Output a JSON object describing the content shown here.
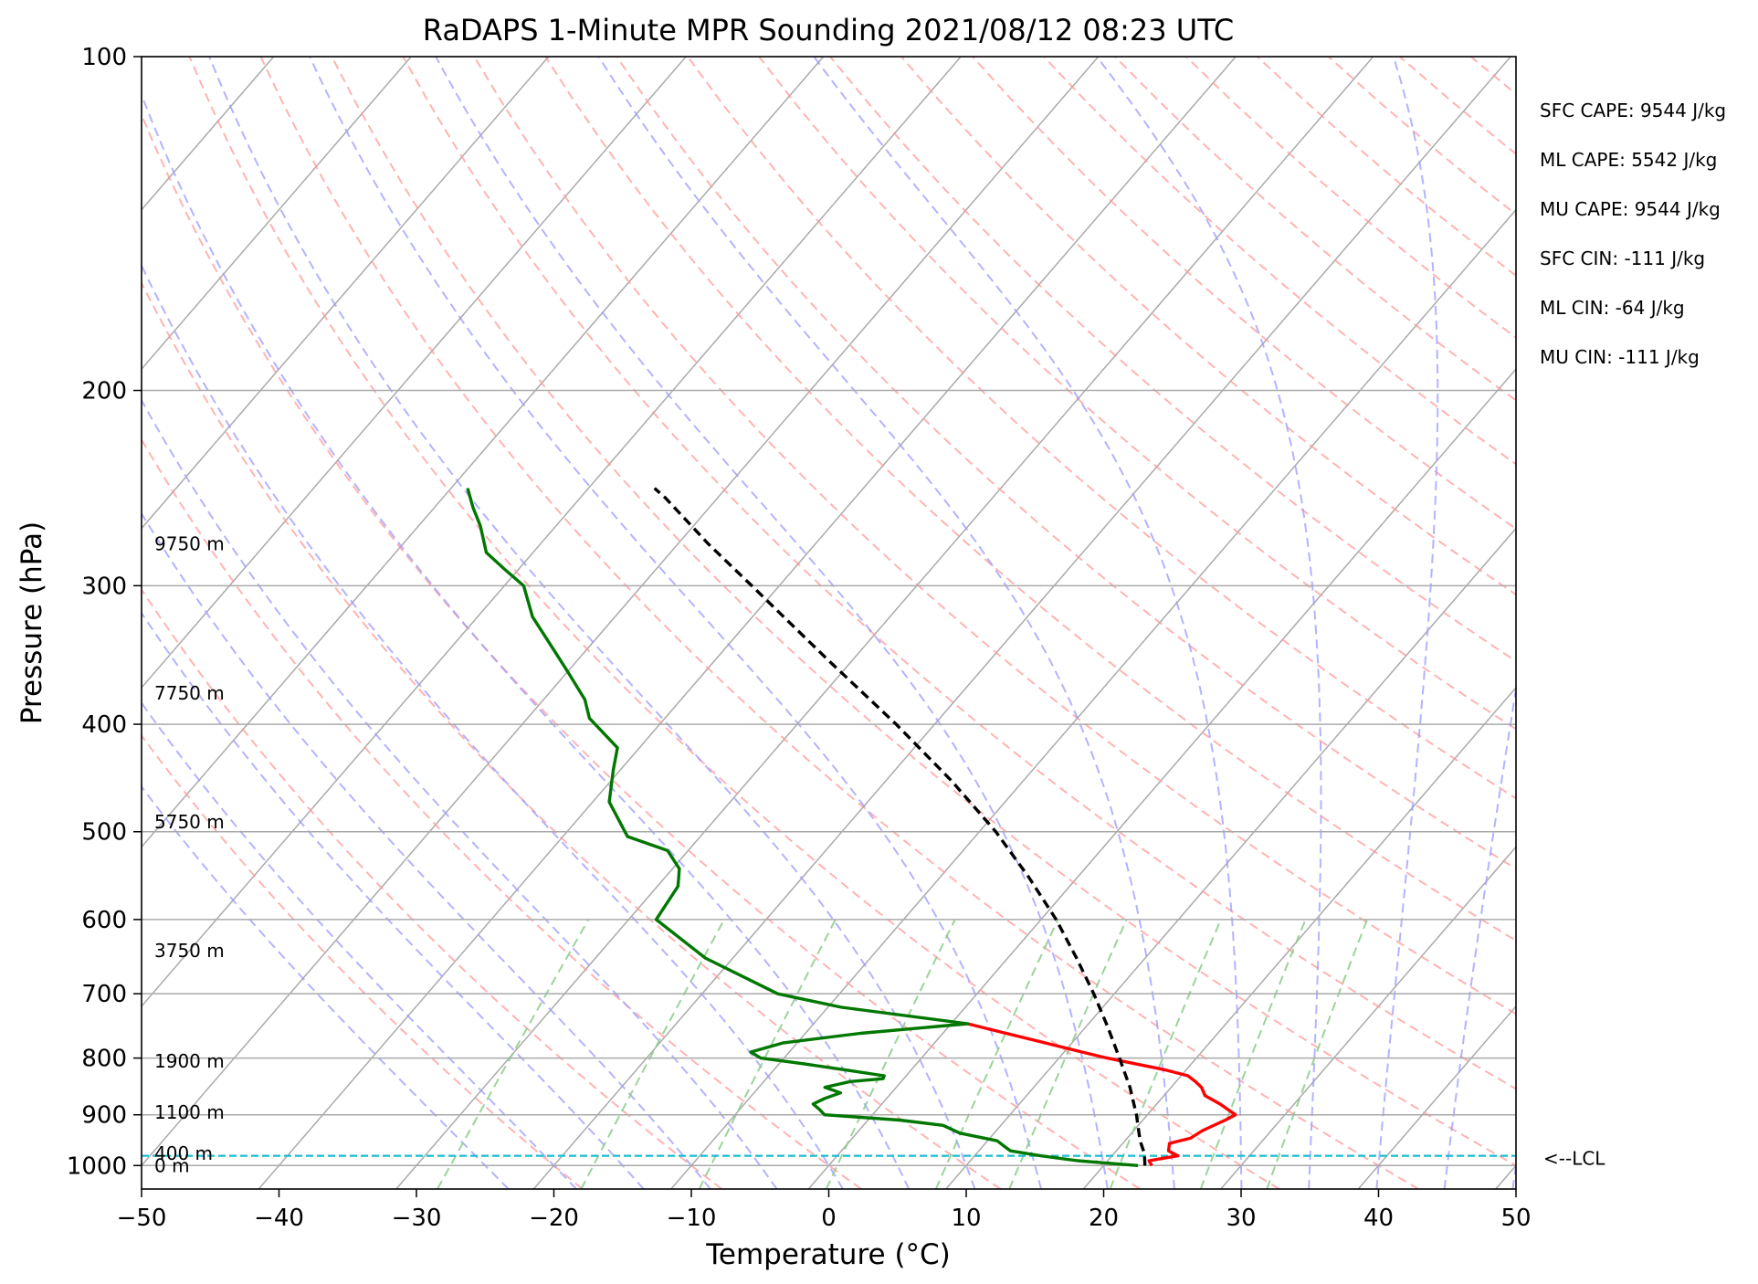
{
  "chart_data": {
    "type": "line",
    "subtype": "skew-T log-p sounding",
    "title": "RaDAPS 1-Minute MPR Sounding 2021/08/12 08:23 UTC",
    "xlabel": "Temperature (°C)",
    "ylabel": "Pressure (hPa)",
    "xlim": [
      -50,
      50
    ],
    "ylim_pressure": [
      1050,
      100
    ],
    "y_scale": "log",
    "x_ticks": [
      -50,
      -40,
      -30,
      -20,
      -10,
      0,
      10,
      20,
      30,
      40,
      50
    ],
    "x_tick_labels": [
      "−50",
      "−40",
      "−30",
      "−20",
      "−10",
      "0",
      "10",
      "20",
      "30",
      "40",
      "50"
    ],
    "y_ticks": [
      100,
      200,
      300,
      400,
      500,
      600,
      700,
      800,
      900,
      1000
    ],
    "y_tick_labels": [
      "100",
      "200",
      "300",
      "400",
      "500",
      "600",
      "700",
      "800",
      "900",
      "1000"
    ],
    "grid": true,
    "background_lines": {
      "isotherms_color": "#aaaaaa",
      "dry_adiabats_color": "#ff9999",
      "moist_adiabats_color": "#9999ff",
      "mixing_ratio_color": "#88cc88"
    },
    "series": [
      {
        "color": "#ff0000",
        "points": [
          [
            1000,
            23.5
          ],
          [
            990,
            23.0
          ],
          [
            980,
            24.8
          ],
          [
            970,
            23.8
          ],
          [
            955,
            23.4
          ],
          [
            945,
            24.6
          ],
          [
            930,
            25.0
          ],
          [
            910,
            26.0
          ],
          [
            900,
            26.4
          ],
          [
            880,
            24.6
          ],
          [
            865,
            23.0
          ],
          [
            850,
            22.2
          ],
          [
            840,
            21.4
          ],
          [
            830,
            20.5
          ],
          [
            820,
            18.5
          ],
          [
            810,
            16.0
          ],
          [
            800,
            13.5
          ],
          [
            790,
            11.3
          ],
          [
            775,
            8.0
          ],
          [
            755,
            3.5
          ],
          [
            745,
            1.2
          ]
        ]
      },
      {
        "color": "#007700",
        "points": [
          [
            1000,
            22.5
          ],
          [
            990,
            17.8
          ],
          [
            980,
            14.8
          ],
          [
            970,
            12.3
          ],
          [
            960,
            11.5
          ],
          [
            950,
            10.7
          ],
          [
            935,
            7.5
          ],
          [
            920,
            5.8
          ],
          [
            910,
            2.3
          ],
          [
            900,
            -3.5
          ],
          [
            890,
            -4.2
          ],
          [
            880,
            -5.0
          ],
          [
            870,
            -4.5
          ],
          [
            860,
            -3.7
          ],
          [
            850,
            -5.2
          ],
          [
            840,
            -3.7
          ],
          [
            835,
            -1.5
          ],
          [
            830,
            -1.6
          ],
          [
            820,
            -4.8
          ],
          [
            810,
            -8.1
          ],
          [
            800,
            -11.7
          ],
          [
            790,
            -12.8
          ],
          [
            775,
            -11.0
          ],
          [
            760,
            -6.0
          ],
          [
            745,
            1.2
          ],
          [
            720,
            -9.0
          ],
          [
            700,
            -14.5
          ],
          [
            650,
            -22.0
          ],
          [
            600,
            -28.0
          ],
          [
            560,
            -28.5
          ],
          [
            540,
            -29.5
          ],
          [
            520,
            -31.5
          ],
          [
            505,
            -35.3
          ],
          [
            470,
            -38.8
          ],
          [
            440,
            -40.5
          ],
          [
            420,
            -41.6
          ],
          [
            395,
            -45.5
          ],
          [
            380,
            -47.0
          ],
          [
            360,
            -49.8
          ],
          [
            340,
            -52.8
          ],
          [
            320,
            -56.0
          ],
          [
            300,
            -58.6
          ],
          [
            290,
            -61.0
          ],
          [
            280,
            -63.4
          ],
          [
            265,
            -65.5
          ],
          [
            255,
            -67.2
          ],
          [
            245,
            -68.8
          ]
        ]
      },
      {
        "color": "#000000",
        "dash": true,
        "points": [
          [
            1000,
            23.0
          ],
          [
            975,
            22.2
          ],
          [
            950,
            21.1
          ],
          [
            900,
            19.2
          ],
          [
            850,
            17.0
          ],
          [
            800,
            14.4
          ],
          [
            750,
            11.6
          ],
          [
            700,
            8.5
          ],
          [
            650,
            5.0
          ],
          [
            600,
            1.1
          ],
          [
            550,
            -3.5
          ],
          [
            500,
            -8.8
          ],
          [
            450,
            -15.2
          ],
          [
            400,
            -22.8
          ],
          [
            350,
            -31.8
          ],
          [
            300,
            -42.0
          ],
          [
            275,
            -47.8
          ],
          [
            250,
            -53.8
          ],
          [
            245,
            -55.2
          ]
        ]
      }
    ],
    "lcl_pressure": 980,
    "lcl_label": "<--LCL",
    "height_labels": [
      {
        "p": 1000,
        "text": "0 m"
      },
      {
        "p": 975,
        "text": "400 m"
      },
      {
        "p": 895,
        "text": "1100 m"
      },
      {
        "p": 805,
        "text": "1900 m"
      },
      {
        "p": 640,
        "text": "3750 m"
      },
      {
        "p": 490,
        "text": "5750 m"
      },
      {
        "p": 375,
        "text": "7750 m"
      },
      {
        "p": 275,
        "text": "9750 m"
      }
    ],
    "stats": [
      "SFC CAPE: 9544 J/kg",
      "ML CAPE: 5542 J/kg",
      "MU CAPE: 9544 J/kg",
      "SFC CIN: -111 J/kg",
      "ML CIN: -64 J/kg",
      "MU CIN: -111 J/kg"
    ]
  }
}
